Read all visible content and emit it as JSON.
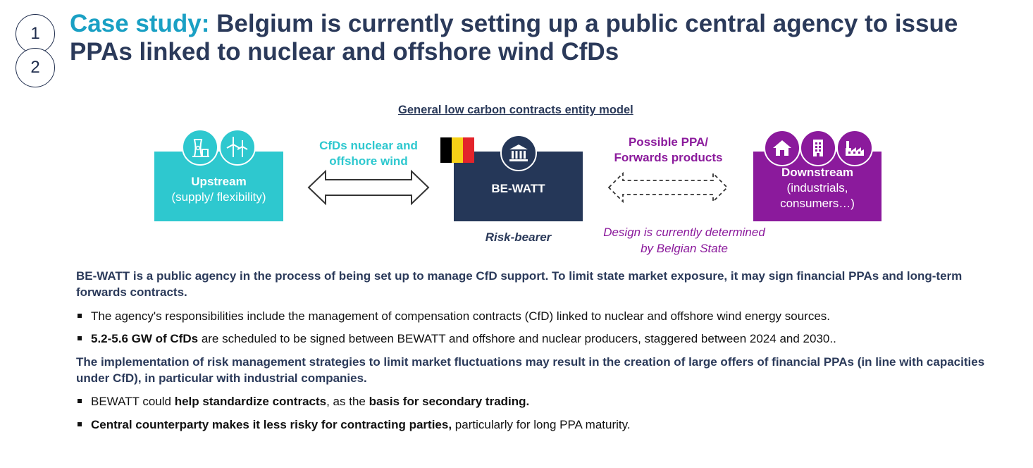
{
  "steps": [
    "1",
    "2"
  ],
  "title": {
    "accent": "Case study:",
    "main": " Belgium is currently setting up a public central agency to issue PPAs linked to nuclear and offshore wind CfDs"
  },
  "diagram": {
    "heading": "General low carbon contracts entity model",
    "upstream": {
      "title": "Upstream",
      "subtitle": "(supply/ flexibility)",
      "icons": [
        "nuclear-plant-icon",
        "wind-turbines-icon"
      ]
    },
    "left_arrow_label": [
      "CfDs nuclear and",
      "offshore wind"
    ],
    "center": {
      "title": "BE-WATT",
      "icon": "government-building-icon",
      "flag": "belgium-flag",
      "caption": "Risk-bearer"
    },
    "right_arrow_label": [
      "Possible PPA/",
      "Forwards products"
    ],
    "right_note": [
      "Design is currently determined",
      "by Belgian State"
    ],
    "downstream": {
      "title": "Downstream",
      "subtitle_1": "(industrials,",
      "subtitle_2": "consumers…)",
      "icons": [
        "house-icon",
        "office-building-icon",
        "factory-icon"
      ]
    },
    "colors": {
      "upstream": "#2ec8cf",
      "center": "#253758",
      "downstream": "#8b1a9c"
    }
  },
  "text": {
    "para1": "BE-WATT is a public agency in the process of being set up to manage CfD support. To limit state market exposure, it may sign financial PPAs and long-term forwards contracts.",
    "bullet1": "The agency's responsibilities include the management of compensation contracts (CfD) linked to nuclear and offshore wind energy sources.",
    "bullet2_bold": "5.2-5.6 GW of CfDs",
    "bullet2_rest": " are scheduled to be signed between BEWATT and offshore and nuclear producers, staggered between 2024 and 2030..",
    "para2": "The implementation of risk management strategies to limit market fluctuations may result in the creation of large offers of financial PPAs (in line with capacities under CfD), in particular with industrial companies.",
    "bullet3_a": "BEWATT could ",
    "bullet3_b": "help standardize contracts",
    "bullet3_c": ", as the ",
    "bullet3_d": "basis for secondary trading.",
    "bullet4_bold": "Central counterparty makes it less risky for contracting parties,",
    "bullet4_rest": " particularly for long PPA maturity."
  }
}
